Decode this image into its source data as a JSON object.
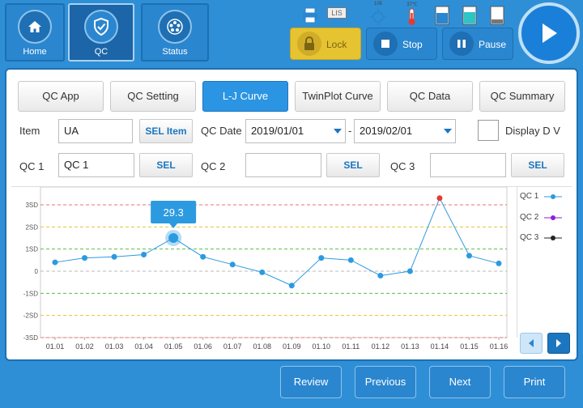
{
  "nav": {
    "home_label": "Home",
    "qc_label": "QC",
    "status_label": "Status"
  },
  "status": {
    "lis_label": "LIS",
    "temp1": "105",
    "temp2": "37℃"
  },
  "controls": {
    "lock_label": "Lock",
    "stop_label": "Stop",
    "pause_label": "Pause"
  },
  "tabs": [
    {
      "label": "QC App"
    },
    {
      "label": "QC Setting"
    },
    {
      "label": "L-J Curve"
    },
    {
      "label": "TwinPlot Curve"
    },
    {
      "label": "QC Data"
    },
    {
      "label": "QC Summary"
    }
  ],
  "form": {
    "item_label": "Item",
    "item_value": "UA",
    "sel_item_label": "SEL Item",
    "qc_date_label": "QC Date",
    "date_from": "2019/01/01",
    "date_sep": "-",
    "date_to": "2019/02/01",
    "display_dv_label": "Display D V",
    "qc1_label": "QC 1",
    "qc1_value": "QC 1",
    "qc2_label": "QC 2",
    "qc2_value": "",
    "qc3_label": "QC 3",
    "qc3_value": "",
    "sel_label": "SEL"
  },
  "chart_data": {
    "type": "line",
    "y_ticks": [
      "3SD",
      "2SD",
      "1SD",
      "0",
      "-1SD",
      "-2SD",
      "-3SD"
    ],
    "ylim": [
      -3,
      3
    ],
    "categories": [
      "01.01",
      "01.02",
      "01.03",
      "01.04",
      "01.05",
      "01.06",
      "01.07",
      "01.08",
      "01.09",
      "01.10",
      "01.11",
      "01.12",
      "01.13",
      "01.14",
      "01.15",
      "01.16"
    ],
    "series": [
      {
        "name": "QC 1",
        "color": "#2c9ae0",
        "values": [
          0.4,
          0.6,
          0.65,
          0.75,
          1.5,
          0.65,
          0.3,
          -0.05,
          -0.65,
          0.6,
          0.5,
          -0.2,
          0.0,
          3.5,
          0.7,
          0.35
        ]
      }
    ],
    "legend": [
      {
        "name": "QC 1",
        "color": "#2c9ae0"
      },
      {
        "name": "QC 2",
        "color": "#8a1ee0"
      },
      {
        "name": "QC 3",
        "color": "#222222"
      }
    ],
    "highlight": {
      "index": 4,
      "label": "29.3"
    },
    "outlier_index": 13,
    "outlier_color": "#e53935",
    "sd_line_colors": {
      "3": "#e57373",
      "2": "#e6c23a",
      "1": "#5cbf4a",
      "0": "#bbbbbb"
    }
  },
  "bottom": {
    "review_label": "Review",
    "previous_label": "Previous",
    "next_label": "Next",
    "print_label": "Print"
  }
}
